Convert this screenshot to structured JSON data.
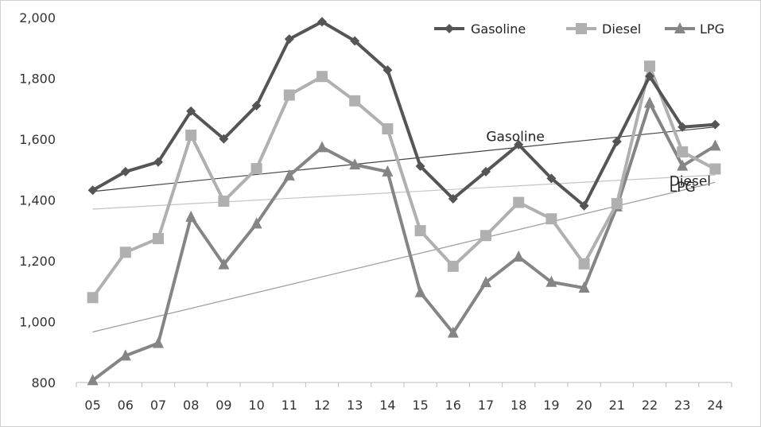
{
  "chart_data": {
    "type": "line",
    "categories": [
      "05",
      "06",
      "07",
      "08",
      "09",
      "10",
      "11",
      "12",
      "13",
      "14",
      "15",
      "16",
      "17",
      "18",
      "19",
      "20",
      "21",
      "22",
      "23",
      "24"
    ],
    "ylim": [
      800,
      2000
    ],
    "yticks": [
      800,
      1000,
      1200,
      1400,
      1600,
      1800,
      2000
    ],
    "ytick_labels": [
      "800",
      "1,000",
      "1,200",
      "1,400",
      "1,600",
      "1,800",
      "2,000"
    ],
    "grid": false,
    "legend_position": "top-right",
    "series": [
      {
        "name": "Gasoline",
        "marker": "diamond",
        "color": "#555555",
        "values": [
          1432,
          1493,
          1525,
          1692,
          1601,
          1710,
          1929,
          1986,
          1923,
          1827,
          1511,
          1404,
          1493,
          1582,
          1471,
          1381,
          1592,
          1807,
          1640,
          1648
        ],
        "trend": {
          "label": "Gasoline",
          "start": 1428,
          "end": 1640,
          "color": "#444444"
        }
      },
      {
        "name": "Diesel",
        "marker": "square",
        "color": "#b0b0b0",
        "values": [
          1079,
          1228,
          1273,
          1613,
          1396,
          1503,
          1745,
          1806,
          1726,
          1634,
          1299,
          1182,
          1283,
          1392,
          1338,
          1190,
          1388,
          1840,
          1558,
          1502
        ],
        "trend": {
          "label": "Diesel",
          "start": 1370,
          "end": 1482,
          "color": "#c4c4c4"
        }
      },
      {
        "name": "LPG",
        "marker": "triangle",
        "color": "#858585",
        "values": [
          807,
          888,
          929,
          1344,
          1188,
          1322,
          1480,
          1573,
          1516,
          1493,
          1096,
          963,
          1129,
          1213,
          1130,
          1111,
          1378,
          1719,
          1512,
          1578
        ],
        "trend": {
          "label": "LPG",
          "start": 966,
          "end": 1458,
          "color": "#9a9a9a"
        }
      }
    ]
  }
}
